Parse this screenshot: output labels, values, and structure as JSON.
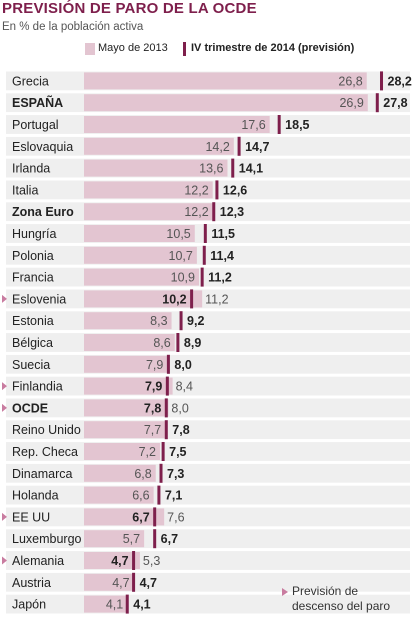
{
  "title": "PREVISIÓN DE PARO DE LA OCDE",
  "subtitle": "En % de la población activa",
  "legend": {
    "may2013": "Mayo de 2013",
    "forecast2014": "IV trimestre de 2014 (previsión)"
  },
  "note": {
    "line1": "Previsión de",
    "line2": "descenso del paro"
  },
  "colors": {
    "title": "#7e1f4c",
    "bar": "#e3c5d1",
    "marker": "#7e1f4c",
    "arrow": "#c97ca0",
    "stripe": "#efefef"
  },
  "chart_data": {
    "type": "bar",
    "orientation": "horizontal",
    "categories": [
      "Grecia",
      "ESPAÑA",
      "Portugal",
      "Eslovaquia",
      "Irlanda",
      "Italia",
      "Zona Euro",
      "Hungría",
      "Polonia",
      "Francia",
      "Eslovenia",
      "Estonia",
      "Bélgica",
      "Suecia",
      "Finlandia",
      "OCDE",
      "Reino Unido",
      "Rep. Checa",
      "Dinamarca",
      "Holanda",
      "EE UU",
      "Luxemburgo",
      "Alemania",
      "Austria",
      "Japón"
    ],
    "bold_categories": [
      "ESPAÑA",
      "Zona Euro",
      "OCDE"
    ],
    "series": [
      {
        "name": "Mayo de 2013",
        "values": [
          26.8,
          26.9,
          17.6,
          14.2,
          13.6,
          12.2,
          12.2,
          10.5,
          10.7,
          10.9,
          11.2,
          8.3,
          8.6,
          7.9,
          8.4,
          8.0,
          7.7,
          7.2,
          6.8,
          6.6,
          7.6,
          5.7,
          5.3,
          4.7,
          4.1
        ]
      },
      {
        "name": "IV trimestre de 2014 (previsión)",
        "values": [
          28.2,
          27.8,
          18.5,
          14.7,
          14.1,
          12.6,
          12.3,
          11.5,
          11.4,
          11.2,
          10.2,
          9.2,
          8.9,
          8.0,
          7.9,
          7.8,
          7.8,
          7.5,
          7.3,
          7.1,
          6.7,
          6.7,
          4.7,
          4.7,
          4.1
        ]
      }
    ],
    "labels_may": [
      "26,8",
      "26,9",
      "17,6",
      "14,2",
      "13,6",
      "12,2",
      "12,2",
      "10,5",
      "10,7",
      "10,9",
      "11,2",
      "8,3",
      "8,6",
      "7,9",
      "8,4",
      "8,0",
      "7,7",
      "7,2",
      "6,8",
      "6,6",
      "7,6",
      "5,7",
      "5,3",
      "4,7",
      "4,1"
    ],
    "labels_forecast": [
      "28,2",
      "27,8",
      "18,5",
      "14,7",
      "14,1",
      "12,6",
      "12,3",
      "11,5",
      "11,4",
      "11,2",
      "10,2",
      "9,2",
      "8,9",
      "8,0",
      "7,9",
      "7,8",
      "7,8",
      "7,5",
      "7,3",
      "7,1",
      "6,7",
      "6,7",
      "4,7",
      "4,7",
      "4,1"
    ],
    "decrease_flags": [
      false,
      false,
      false,
      false,
      false,
      false,
      false,
      false,
      false,
      false,
      true,
      false,
      false,
      false,
      true,
      true,
      false,
      false,
      false,
      false,
      true,
      false,
      true,
      false,
      false
    ]
  }
}
